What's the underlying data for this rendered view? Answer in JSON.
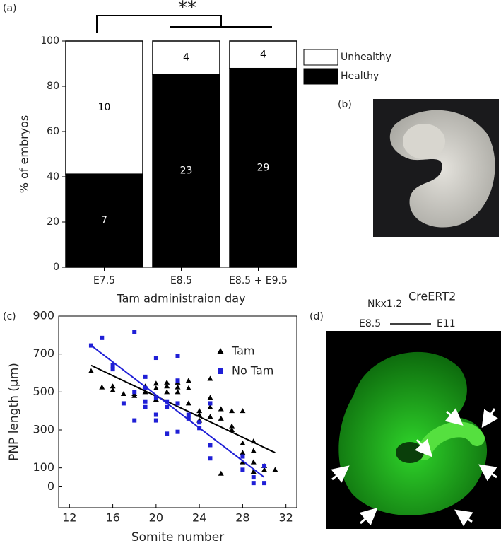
{
  "panel_labels": [
    "(a)",
    "(b)",
    "(c)",
    "(d)"
  ],
  "image_d": {
    "gene": "Nkx1.2",
    "allele": "CreERT2",
    "from": "E8.5",
    "to": "E11"
  },
  "chart_data": [
    {
      "type": "stacked-bar",
      "ylabel": "% of embryos",
      "xlabel": "Tam administraion day",
      "annotation": "**",
      "categories": [
        "E7.5",
        "E8.5",
        "E8.5 + E9.5"
      ],
      "series": [
        {
          "name": "Healthy",
          "color": "#000000",
          "text_color": "#ffffff",
          "values": [
            41.2,
            85.2,
            87.9
          ],
          "counts": [
            7,
            23,
            29
          ]
        },
        {
          "name": "Unhealthy",
          "color": "#ffffff",
          "text_color": "#000000",
          "values": [
            58.8,
            14.8,
            12.1
          ],
          "counts": [
            10,
            4,
            4
          ]
        }
      ],
      "ylim": [
        0,
        100
      ],
      "yticks": [
        0,
        20,
        40,
        60,
        80,
        100
      ],
      "legend": "right"
    },
    {
      "type": "scatter",
      "xlabel": "Somite number",
      "ylabel": "PNP length (μm)",
      "xlim": [
        11,
        33
      ],
      "xticks": [
        12,
        16,
        20,
        24,
        28,
        32
      ],
      "ylim": [
        -110,
        900
      ],
      "yticks": [
        0,
        100,
        300,
        500,
        700,
        900
      ],
      "legend": "upper right",
      "series": [
        {
          "name": "Tam",
          "color": "#000000",
          "marker": "triangle",
          "x": [
            14,
            15,
            16,
            16,
            17,
            18,
            18,
            19,
            19,
            20,
            20,
            20,
            21,
            21,
            21,
            22,
            22,
            22,
            23,
            23,
            23,
            24,
            24,
            24,
            25,
            25,
            25,
            25,
            26,
            26,
            26,
            27,
            27,
            27,
            28,
            28,
            28,
            28,
            29,
            29,
            29,
            29,
            30,
            30,
            31
          ],
          "y": [
            610,
            525,
            530,
            510,
            490,
            490,
            480,
            530,
            500,
            545,
            520,
            460,
            550,
            530,
            500,
            550,
            525,
            500,
            560,
            520,
            440,
            400,
            380,
            350,
            570,
            470,
            420,
            370,
            410,
            360,
            70,
            400,
            300,
            320,
            400,
            230,
            180,
            130,
            240,
            190,
            130,
            80,
            110,
            90,
            90
          ],
          "fit": {
            "x": [
              14,
              31
            ],
            "y": [
              640,
              180
            ]
          }
        },
        {
          "name": "No Tam",
          "color": "#1f1fd6",
          "marker": "square",
          "x": [
            14,
            15,
            16,
            16,
            17,
            18,
            18,
            18,
            19,
            19,
            19,
            19,
            20,
            20,
            20,
            20,
            21,
            21,
            21,
            22,
            22,
            22,
            22,
            23,
            23,
            24,
            24,
            25,
            25,
            25,
            28,
            28,
            29,
            29,
            30,
            30
          ],
          "y": [
            745,
            785,
            640,
            620,
            440,
            815,
            500,
            350,
            580,
            520,
            450,
            420,
            680,
            470,
            380,
            350,
            450,
            420,
            280,
            690,
            560,
            440,
            290,
            380,
            360,
            340,
            310,
            440,
            220,
            150,
            90,
            160,
            50,
            20,
            110,
            20
          ],
          "fit": {
            "x": [
              14,
              30
            ],
            "y": [
              745,
              50
            ]
          }
        }
      ]
    }
  ]
}
